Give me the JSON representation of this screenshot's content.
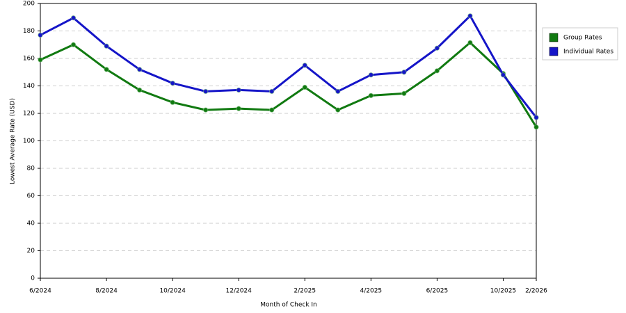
{
  "chart_data": {
    "type": "line",
    "x_label": "Month of Check In",
    "y_label": "Lowest Average Rate (USD)",
    "categories": [
      "6/2024",
      null,
      "8/2024",
      null,
      "10/2024",
      null,
      "12/2024",
      null,
      "2/2025",
      null,
      "4/2025",
      null,
      "6/2025",
      null,
      "10/2025",
      "2/2026"
    ],
    "series": [
      {
        "name": "Group Rates",
        "color": "#117a11",
        "values": [
          159,
          170,
          152,
          137,
          128,
          122.5,
          123.5,
          122.5,
          139,
          122.5,
          133,
          134.5,
          151,
          171.5,
          149,
          110
        ]
      },
      {
        "name": "Individual Rates",
        "color": "#1515c8",
        "values": [
          177,
          189.5,
          169,
          152,
          142,
          136,
          137,
          136,
          155,
          136,
          148,
          150,
          167.5,
          191,
          148,
          117
        ]
      }
    ],
    "ylim": [
      0,
      200
    ],
    "yticks": [
      0,
      20,
      40,
      60,
      80,
      100,
      120,
      140,
      160,
      180,
      200
    ],
    "grid": true,
    "legend": "right"
  }
}
